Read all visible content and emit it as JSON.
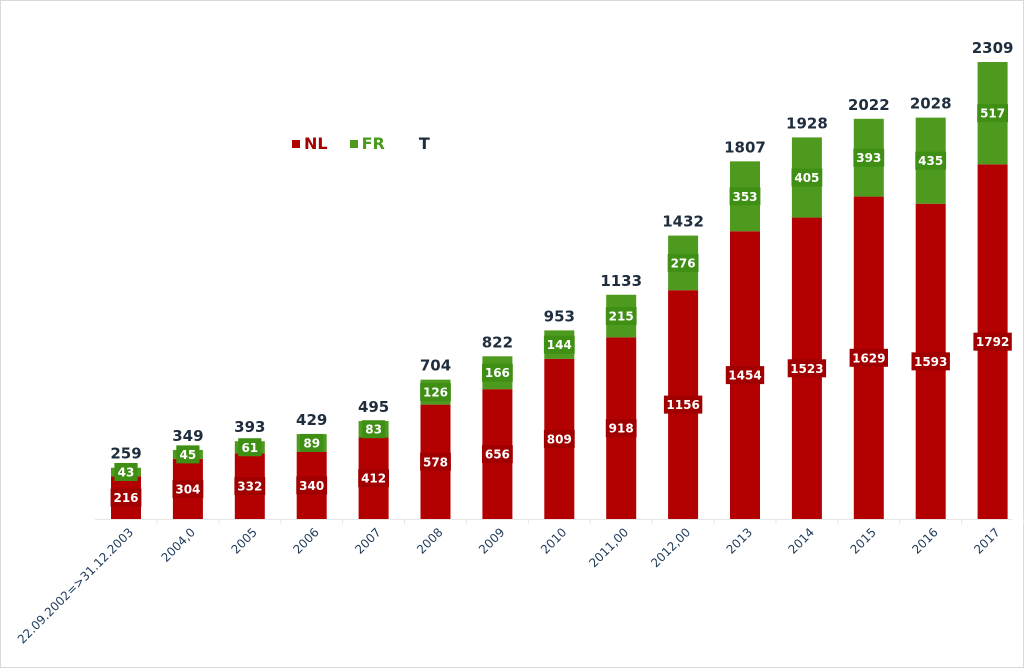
{
  "chart_data": {
    "type": "bar",
    "stacked": true,
    "categories": [
      "22.09.2002=>31.12.2003",
      "2004,0",
      "2005",
      "2006",
      "2007",
      "2008",
      "2009",
      "2010",
      "2011,00",
      "2012,00",
      "2013",
      "2014",
      "2015",
      "2016",
      "2017"
    ],
    "series": [
      {
        "name": "NL",
        "color": "#b30000",
        "values": [
          216,
          304,
          332,
          340,
          412,
          578,
          656,
          809,
          918,
          1156,
          1454,
          1523,
          1629,
          1593,
          1792
        ]
      },
      {
        "name": "FR",
        "color": "#4e9a1f",
        "values": [
          43,
          45,
          61,
          89,
          83,
          126,
          166,
          144,
          215,
          276,
          353,
          405,
          393,
          435,
          517
        ]
      }
    ],
    "totals": {
      "name": "T",
      "values": [
        259,
        349,
        393,
        429,
        495,
        704,
        822,
        953,
        1133,
        1432,
        1807,
        1928,
        2022,
        2028,
        2309
      ]
    },
    "legend_position": "top-left",
    "grid": false,
    "ylim": [
      0,
      2309
    ]
  }
}
